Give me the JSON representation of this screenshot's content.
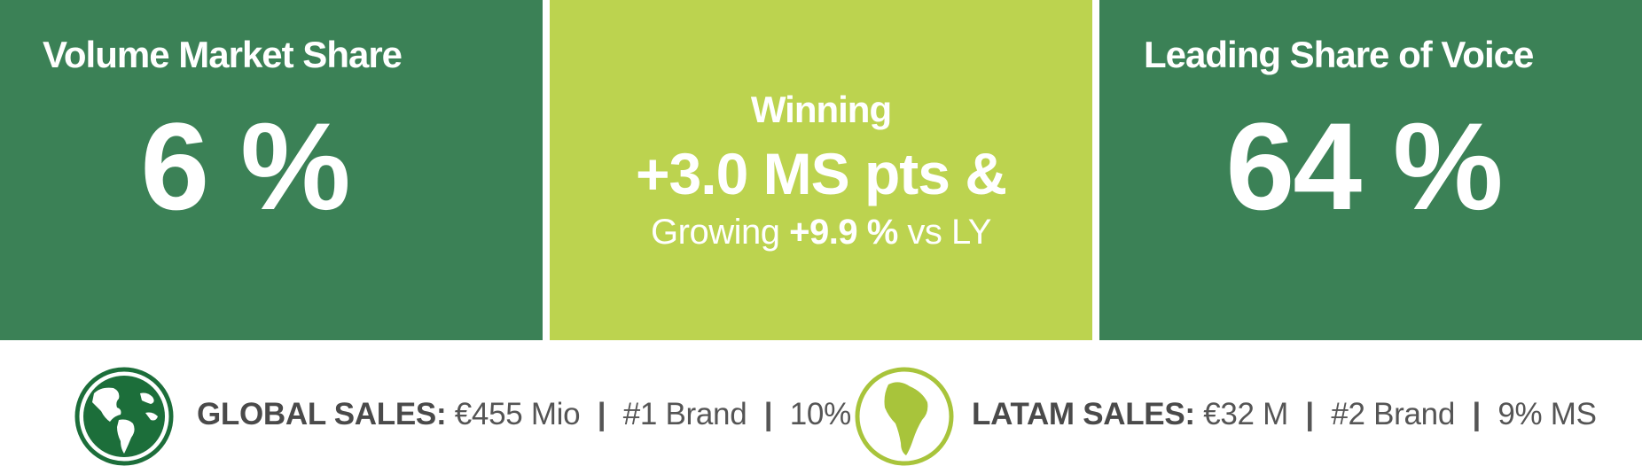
{
  "left_panel": {
    "title": "Volume Market Share",
    "value": "6 %"
  },
  "middle_panel": {
    "line1": "Winning",
    "line2": "+3.0 MS pts &",
    "line3_prefix": "Growing",
    "line3_highlight": "+9.9 %",
    "line3_suffix": "vs LY"
  },
  "right_panel": {
    "title": "Leading Share of Voice",
    "value": "64 %"
  },
  "global_sales": {
    "label": "GLOBAL SALES:",
    "amount": "€455 Mio",
    "brand_rank": "#1 Brand",
    "market_share": "10% MS",
    "icon": "globe-americas-icon"
  },
  "latam_sales": {
    "label": "LATAM SALES:",
    "amount": "€32 M",
    "brand_rank": "#2 Brand",
    "market_share": "9% MS",
    "icon": "south-america-icon"
  },
  "separator": "|",
  "colors": {
    "dark_green": "#3b8156",
    "lime_green": "#bcd34f",
    "globe_dark": "#1c6e3a",
    "globe_lime": "#a8c43b",
    "text_gray": "#555555"
  }
}
